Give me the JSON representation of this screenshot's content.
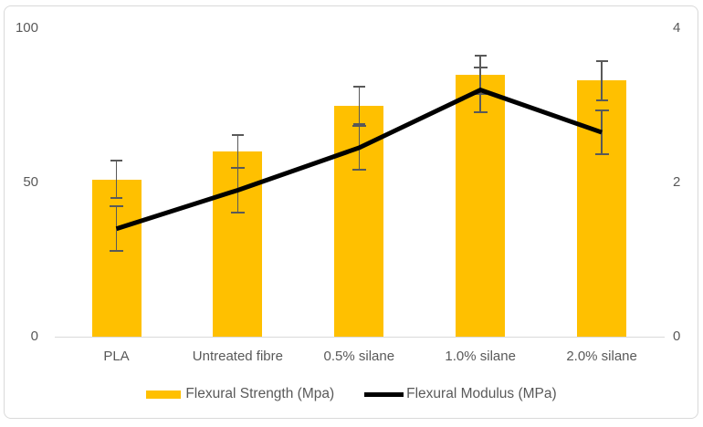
{
  "chart_data": {
    "type": "bar",
    "subtype": "combo-bar-line-dual-axis",
    "title": "",
    "categories": [
      "PLA",
      "Untreated fibre",
      "0.5% silane",
      "1.0% silane",
      "2.0% silane"
    ],
    "series": [
      {
        "name": "Flexural Strength (Mpa)",
        "render_as": "bar",
        "axis": "left",
        "color": "#FFC000",
        "values": [
          51,
          60,
          75,
          85,
          83
        ],
        "error_bars": [
          6.4,
          5.7,
          6.4,
          6.5,
          6.6
        ]
      },
      {
        "name": "Flexural Modulus (MPa)",
        "render_as": "line",
        "axis": "right",
        "color": "#000000",
        "line_width": 5,
        "values": [
          1.4,
          1.9,
          2.45,
          3.2,
          2.65
        ],
        "error_bars": [
          0.3,
          0.3,
          0.3,
          0.3,
          0.3
        ]
      }
    ],
    "left_axis": {
      "label": "",
      "range": [
        0,
        100
      ],
      "ticks": [
        0,
        50,
        100
      ]
    },
    "right_axis": {
      "label": "",
      "range": [
        0,
        4
      ],
      "ticks": [
        0,
        2,
        4
      ]
    },
    "grid": false,
    "legend_position": "bottom",
    "styles": {
      "error_bar_color": "#595959",
      "axis_text_color": "#595959",
      "axis_line_color": "#D9D9D9",
      "figure_border_color": "#D9D9D9",
      "background": "#FFFFFF"
    }
  }
}
